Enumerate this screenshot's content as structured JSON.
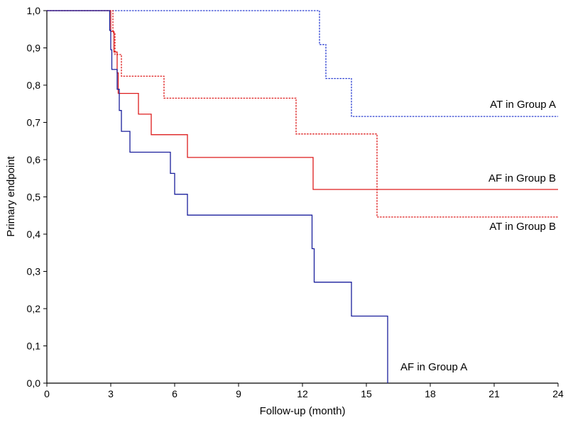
{
  "chart_data": {
    "type": "line",
    "step": true,
    "title": "",
    "xlabel": "Follow-up (month)",
    "ylabel": "Primary endpoint",
    "xlim": [
      0,
      24
    ],
    "ylim": [
      0,
      1
    ],
    "xticks": [
      0,
      3,
      6,
      9,
      12,
      15,
      18,
      21,
      24
    ],
    "xtick_labels": [
      "0",
      "3",
      "6",
      "9",
      "12",
      "15",
      "18",
      "21",
      "24"
    ],
    "yticks": [
      0,
      0.1,
      0.2,
      0.3,
      0.4,
      0.5,
      0.6,
      0.7,
      0.8,
      0.9,
      1.0
    ],
    "ytick_labels": [
      "0,0",
      "0,1",
      "0,2",
      "0,3",
      "0,4",
      "0,5",
      "0,6",
      "0,7",
      "0,8",
      "0,9",
      "1,0"
    ],
    "grid": false,
    "series": [
      {
        "name": "AT in Group A",
        "color": "#2b3fd1",
        "dash": "dotted",
        "points": [
          [
            0,
            1.0
          ],
          [
            12.8,
            1.0
          ],
          [
            12.8,
            0.909
          ],
          [
            13.1,
            0.909
          ],
          [
            13.1,
            0.818
          ],
          [
            14.3,
            0.818
          ],
          [
            14.3,
            0.716
          ],
          [
            24,
            0.716
          ]
        ]
      },
      {
        "name": "AF in Group B",
        "color": "#dd1c1c",
        "dash": "solid",
        "points": [
          [
            0,
            1.0
          ],
          [
            3.0,
            1.0
          ],
          [
            3.0,
            0.944
          ],
          [
            3.15,
            0.944
          ],
          [
            3.15,
            0.889
          ],
          [
            3.3,
            0.889
          ],
          [
            3.3,
            0.833
          ],
          [
            3.35,
            0.833
          ],
          [
            3.35,
            0.778
          ],
          [
            4.3,
            0.778
          ],
          [
            4.3,
            0.722
          ],
          [
            4.9,
            0.722
          ],
          [
            4.9,
            0.667
          ],
          [
            6.6,
            0.667
          ],
          [
            6.6,
            0.606
          ],
          [
            12.5,
            0.606
          ],
          [
            12.5,
            0.52
          ],
          [
            24,
            0.52
          ]
        ]
      },
      {
        "name": "AT in Group B",
        "color": "#dd1c1c",
        "dash": "dotted",
        "points": [
          [
            0,
            1.0
          ],
          [
            3.1,
            1.0
          ],
          [
            3.1,
            0.941
          ],
          [
            3.2,
            0.941
          ],
          [
            3.2,
            0.882
          ],
          [
            3.5,
            0.882
          ],
          [
            3.5,
            0.824
          ],
          [
            5.5,
            0.824
          ],
          [
            5.5,
            0.765
          ],
          [
            11.7,
            0.765
          ],
          [
            11.7,
            0.669
          ],
          [
            15.5,
            0.669
          ],
          [
            15.5,
            0.446
          ],
          [
            24,
            0.446
          ]
        ]
      },
      {
        "name": "AF in Group A",
        "color": "#1a1f9c",
        "dash": "solid",
        "points": [
          [
            0,
            1.0
          ],
          [
            2.95,
            1.0
          ],
          [
            2.95,
            0.947
          ],
          [
            3.0,
            0.947
          ],
          [
            3.0,
            0.895
          ],
          [
            3.05,
            0.895
          ],
          [
            3.05,
            0.842
          ],
          [
            3.3,
            0.842
          ],
          [
            3.3,
            0.789
          ],
          [
            3.4,
            0.789
          ],
          [
            3.4,
            0.732
          ],
          [
            3.5,
            0.732
          ],
          [
            3.5,
            0.676
          ],
          [
            3.9,
            0.676
          ],
          [
            3.9,
            0.62
          ],
          [
            5.8,
            0.62
          ],
          [
            5.8,
            0.563
          ],
          [
            6.0,
            0.563
          ],
          [
            6.0,
            0.507
          ],
          [
            6.6,
            0.507
          ],
          [
            6.6,
            0.451
          ],
          [
            12.45,
            0.451
          ],
          [
            12.45,
            0.361
          ],
          [
            12.55,
            0.361
          ],
          [
            12.55,
            0.271
          ],
          [
            14.3,
            0.271
          ],
          [
            14.3,
            0.18
          ],
          [
            16.0,
            0.18
          ],
          [
            16.0,
            0.0
          ]
        ]
      }
    ]
  }
}
